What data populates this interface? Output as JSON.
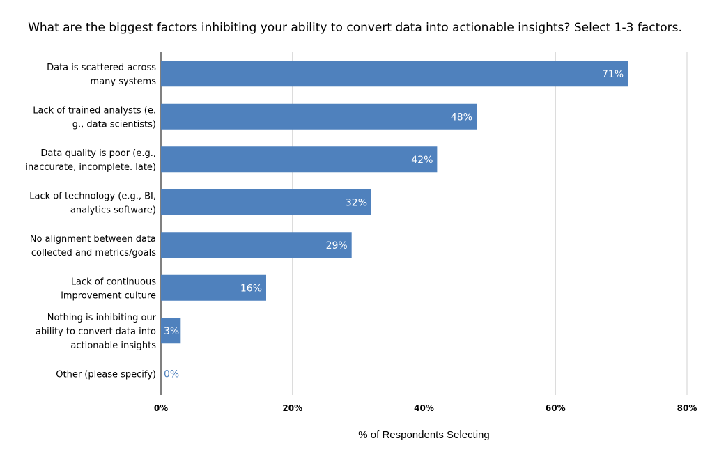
{
  "chart_data": {
    "type": "bar",
    "orientation": "horizontal",
    "title": "What are the biggest factors inhibiting your ability to convert data into actionable insights? Select 1-3 factors.",
    "xlabel": "% of Respondents Selecting",
    "ylabel": "",
    "xlim": [
      0,
      80
    ],
    "ticks": [
      "0%",
      "20%",
      "40%",
      "60%",
      "80%"
    ],
    "grid": "vertical",
    "categories": [
      [
        "Data is scattered across",
        "many systems"
      ],
      [
        "Lack of trained analysts (e.",
        "g., data scientists)"
      ],
      [
        "Data quality is poor (e.g.,",
        "inaccurate, incomplete. late)"
      ],
      [
        "Lack of technology (e.g., BI,",
        "analytics software)"
      ],
      [
        "No alignment between data",
        "collected and metrics/goals"
      ],
      [
        "Lack of continuous",
        "improvement culture"
      ],
      [
        "Nothing is inhibiting our",
        "ability to convert data into",
        "actionable insights"
      ],
      [
        "Other (please specify)"
      ]
    ],
    "values": [
      71,
      48,
      42,
      32,
      29,
      16,
      3,
      0
    ],
    "data_labels": [
      "71%",
      "48%",
      "42%",
      "32%",
      "29%",
      "16%",
      "3%",
      "0%"
    ],
    "colors": {
      "bar": "#4f81bd",
      "grid": "#d0d0d0",
      "axis": "#000000",
      "label_inside": "#ffffff",
      "label_outside": "#4f81bd"
    }
  }
}
